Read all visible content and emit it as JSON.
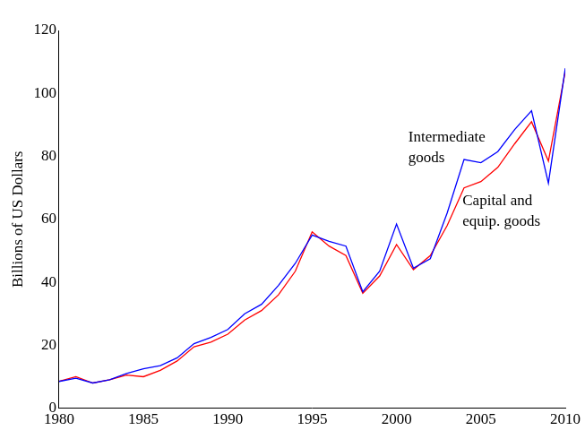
{
  "chart_data": {
    "type": "line",
    "y_label": "Billions of US Dollars",
    "x": [
      1980,
      1981,
      1982,
      1983,
      1984,
      1985,
      1986,
      1987,
      1988,
      1989,
      1990,
      1991,
      1992,
      1993,
      1994,
      1995,
      1996,
      1997,
      1998,
      1999,
      2000,
      2001,
      2002,
      2003,
      2004,
      2005,
      2006,
      2007,
      2008,
      2009,
      2010
    ],
    "series": [
      {
        "name": "Intermediate goods",
        "color": "#0000ff",
        "values": [
          8.5,
          9.5,
          8,
          9,
          11,
          12.5,
          13.5,
          16,
          20.5,
          22.5,
          25,
          30,
          33,
          39,
          46,
          55,
          53,
          51.5,
          37,
          43.5,
          58.5,
          44.5,
          47.5,
          62,
          79,
          78,
          81.5,
          88.5,
          94.5,
          71.5,
          108
        ]
      },
      {
        "name": "Capital and equip. goods",
        "color": "#ff0000",
        "values": [
          8.5,
          10,
          8,
          9,
          10.5,
          10,
          12,
          15,
          19.5,
          21,
          23.5,
          28,
          31,
          36,
          43.5,
          56,
          51.5,
          48.5,
          36.5,
          42,
          52,
          44,
          48.5,
          58,
          70,
          72,
          76.5,
          84,
          91,
          78.5,
          107
        ]
      }
    ],
    "xlim": [
      1980,
      2010
    ],
    "xticks": [
      1980,
      1985,
      1990,
      1995,
      2000,
      2005,
      2010
    ],
    "ylim": [
      0,
      120
    ],
    "yticks": [
      0,
      20,
      40,
      60,
      80,
      100,
      120
    ],
    "grid": false
  }
}
